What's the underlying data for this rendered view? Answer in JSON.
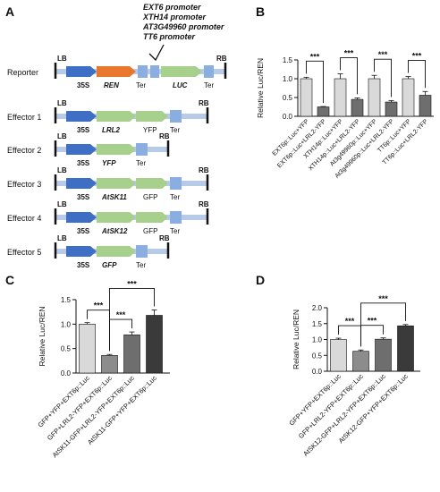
{
  "panels": {
    "A": "A",
    "B": "B",
    "C": "C",
    "D": "D"
  },
  "construct_labels": {
    "lb": "LB",
    "rb": "RB",
    "p35s": "35S",
    "ren": "REN",
    "ter": "Ter",
    "luc": "LUC",
    "lrl2": "LRL2",
    "yfp": "YFP",
    "gfp": "GFP",
    "atsk11": "AtSK11",
    "atsk12": "AtSK12"
  },
  "rows": [
    {
      "name": "Reporter"
    },
    {
      "name": "Effector 1"
    },
    {
      "name": "Effector 2"
    },
    {
      "name": "Effector 3"
    },
    {
      "name": "Effector 4"
    },
    {
      "name": "Effector 5"
    }
  ],
  "promoters": [
    "EXT6 promoter",
    "XTH14 promoter",
    "AT3G49960 promoter",
    "TT6 promoter"
  ],
  "colors": {
    "p35s": "#3f6fc5",
    "ren": "#e8782f",
    "green": "#a8d08d",
    "ter": "#8aaee0",
    "backbone": "#b7cbe8",
    "bar_light": "#d9d9d9",
    "bar_mid1": "#8c8c8c",
    "bar_mid2": "#6e6e6e",
    "bar_dark": "#3a3a3a"
  },
  "chart_data": [
    {
      "panel": "B",
      "type": "bar",
      "ylabel": "Relative Luc/REN",
      "ylim": [
        0,
        1.5
      ],
      "yticks": [
        "0.0",
        "0.5",
        "1.0",
        "1.5"
      ],
      "categories": [
        "EXT6p::Luc+YFP",
        "EXT6p::Luc+LRL2-YFP",
        "XTH14p::Luc+YFP",
        "XTH14p::Luc+LRL2-YFP",
        "At3g49960p::Luc+YFP",
        "At3g49960p::Luc+LRL2-YFP",
        "TT6p::Luc+YFP",
        "TT6p::Luc+LRL2-YFP"
      ],
      "values": [
        1.0,
        0.25,
        1.0,
        0.45,
        1.0,
        0.38,
        1.0,
        0.56
      ],
      "errors": [
        0.04,
        0.01,
        0.13,
        0.04,
        0.09,
        0.04,
        0.06,
        0.1
      ],
      "significance": [
        "***",
        "***",
        "***",
        "***"
      ]
    },
    {
      "panel": "C",
      "type": "bar",
      "ylabel": "Relative Luc/REN",
      "ylim": [
        0,
        1.5
      ],
      "yticks": [
        "0.0",
        "0.5",
        "1.0",
        "1.5"
      ],
      "categories": [
        "GFP+YFP+EXT6p::Luc",
        "GFP+LRL2-YFP+EXT6p::Luc",
        "AtSK11-GFP+LRL2-YFP+EXT6p::Luc",
        "AtSK11-GFP+YFP+EXT6p::Luc"
      ],
      "values": [
        1.0,
        0.36,
        0.78,
        1.18
      ],
      "errors": [
        0.03,
        0.02,
        0.06,
        0.11
      ],
      "significance": [
        "***",
        "***",
        "***"
      ]
    },
    {
      "panel": "D",
      "type": "bar",
      "ylabel": "Relative Luc/REN",
      "ylim": [
        0,
        2.0
      ],
      "yticks": [
        "0.0",
        "0.5",
        "1.0",
        "1.5",
        "2.0"
      ],
      "categories": [
        "GFP+YFP+EXT6p::Luc",
        "GFP+LRL2-YFP+EXT6p::Luc",
        "AtSK12-GFP+LRL2-YFP+EXT6p::Luc",
        "AtSK12-GFP+YFP+EXT6p::Luc"
      ],
      "values": [
        1.0,
        0.63,
        1.01,
        1.43
      ],
      "errors": [
        0.04,
        0.04,
        0.04,
        0.04
      ],
      "significance": [
        "***",
        "***",
        "***"
      ]
    }
  ]
}
